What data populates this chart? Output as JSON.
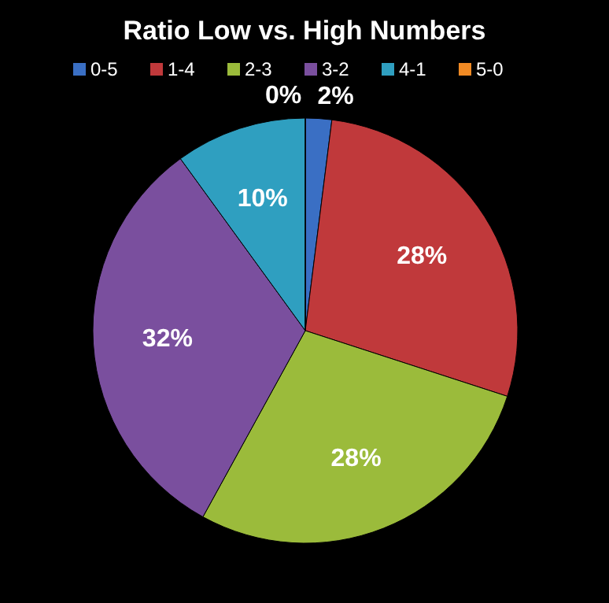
{
  "chart_data": {
    "type": "pie",
    "title": "Ratio Low vs. High Numbers",
    "categories": [
      "0-5",
      "1-4",
      "2-3",
      "3-2",
      "4-1",
      "5-0"
    ],
    "values": [
      2,
      28,
      28,
      32,
      10,
      0
    ],
    "value_labels": [
      "2%",
      "28%",
      "28%",
      "32%",
      "10%",
      "0%"
    ],
    "colors": [
      "#3a6fc4",
      "#c0393b",
      "#9bbb3b",
      "#7a4f9e",
      "#2f9fc0",
      "#f08a24"
    ],
    "legend": "top"
  }
}
